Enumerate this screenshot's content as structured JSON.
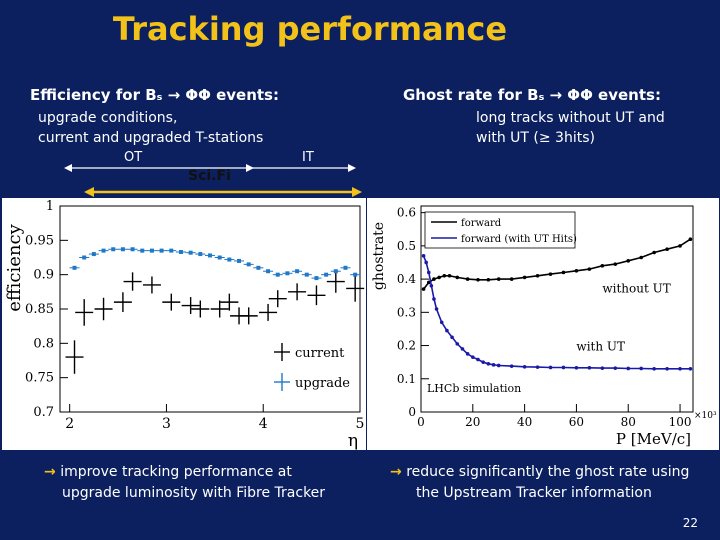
{
  "page": {
    "title": "Tracking performance",
    "page_number": "22",
    "left": {
      "header": "Efficiency for Bₛ → ΦΦ events:",
      "sub1": "upgrade conditions,",
      "sub2": "current and upgraded T-stations",
      "label_ot": "OT",
      "label_scifi": "Sci.Fi",
      "label_it": "IT",
      "bullet_line1": "improve tracking performance at",
      "bullet_line2": "upgrade luminosity with Fibre Tracker"
    },
    "right": {
      "header": "Ghost rate for Bₛ → ΦΦ events:",
      "sub1": "long tracks without UT and",
      "sub2": "with UT (≥ 3hits)",
      "bullet_line1": "reduce significantly the ghost rate using",
      "bullet_line2": "the Upstream Tracker information"
    },
    "colors": {
      "accent": "#f2c21a",
      "background": "#0c2060",
      "series_current": "#000000",
      "series_upgrade": "#1f78c8",
      "ghost_with_ut": "#1a1aa8"
    }
  },
  "chart_data": [
    {
      "type": "scatter",
      "xlabel": "η",
      "ylabel": "efficiency",
      "xlim": [
        1.9,
        5.0
      ],
      "ylim": [
        0.7,
        1.0
      ],
      "xticks": [
        "2",
        "3",
        "4",
        "5"
      ],
      "yticks": [
        "0.7",
        "0.75",
        "0.8",
        "0.85",
        "0.9",
        "0.95",
        "1"
      ],
      "legend": [
        "current",
        "upgrade"
      ],
      "series": [
        {
          "name": "current",
          "x": [
            2.05,
            2.15,
            2.35,
            2.55,
            2.65,
            2.85,
            3.05,
            3.25,
            3.35,
            3.55,
            3.65,
            3.75,
            3.85,
            4.05,
            4.15,
            4.35,
            4.55,
            4.75,
            4.95
          ],
          "y": [
            0.78,
            0.845,
            0.85,
            0.86,
            0.89,
            0.885,
            0.86,
            0.855,
            0.85,
            0.85,
            0.86,
            0.84,
            0.84,
            0.845,
            0.865,
            0.875,
            0.87,
            0.89,
            0.88
          ],
          "err": [
            0.02,
            0.015,
            0.012,
            0.01,
            0.009,
            0.008,
            0.008,
            0.008,
            0.008,
            0.008,
            0.008,
            0.008,
            0.008,
            0.008,
            0.008,
            0.008,
            0.01,
            0.012,
            0.015
          ]
        },
        {
          "name": "upgrade",
          "x": [
            2.05,
            2.15,
            2.25,
            2.35,
            2.45,
            2.55,
            2.65,
            2.75,
            2.85,
            2.95,
            3.05,
            3.15,
            3.25,
            3.35,
            3.45,
            3.55,
            3.65,
            3.75,
            3.85,
            3.95,
            4.05,
            4.15,
            4.25,
            4.35,
            4.45,
            4.55,
            4.65,
            4.75,
            4.85,
            4.95
          ],
          "y": [
            0.91,
            0.925,
            0.93,
            0.935,
            0.937,
            0.937,
            0.937,
            0.935,
            0.935,
            0.935,
            0.935,
            0.933,
            0.932,
            0.93,
            0.928,
            0.925,
            0.922,
            0.92,
            0.915,
            0.91,
            0.905,
            0.9,
            0.902,
            0.905,
            0.9,
            0.895,
            0.9,
            0.905,
            0.91,
            0.9
          ]
        }
      ]
    },
    {
      "type": "line",
      "xlabel": "P [MeV/c]",
      "ylabel": "ghostrate",
      "x_multiplier": "×10³",
      "xlim": [
        0,
        105
      ],
      "ylim": [
        0,
        0.62
      ],
      "xticks": [
        "0",
        "20",
        "40",
        "60",
        "80",
        "100"
      ],
      "yticks": [
        "0",
        "0.1",
        "0.2",
        "0.3",
        "0.4",
        "0.5",
        "0.6"
      ],
      "legend": [
        "forward",
        "forward (with UT Hits)"
      ],
      "annotations": [
        "without UT",
        "with UT",
        "LHCb simulation"
      ],
      "series": [
        {
          "name": "forward",
          "x": [
            1,
            3,
            5,
            7,
            9,
            11,
            14,
            18,
            22,
            26,
            30,
            35,
            40,
            45,
            50,
            55,
            60,
            65,
            70,
            75,
            80,
            85,
            90,
            95,
            100,
            104
          ],
          "y": [
            0.37,
            0.39,
            0.4,
            0.405,
            0.41,
            0.41,
            0.405,
            0.4,
            0.398,
            0.398,
            0.4,
            0.4,
            0.405,
            0.41,
            0.415,
            0.42,
            0.425,
            0.43,
            0.44,
            0.445,
            0.455,
            0.465,
            0.48,
            0.49,
            0.5,
            0.52
          ]
        },
        {
          "name": "forward (with UT Hits)",
          "x": [
            1,
            2,
            3,
            4,
            5,
            6,
            8,
            10,
            12,
            14,
            16,
            18,
            20,
            22,
            24,
            26,
            28,
            30,
            35,
            40,
            45,
            50,
            55,
            60,
            65,
            70,
            75,
            80,
            85,
            90,
            95,
            100,
            104
          ],
          "y": [
            0.47,
            0.45,
            0.42,
            0.38,
            0.34,
            0.31,
            0.27,
            0.245,
            0.225,
            0.205,
            0.19,
            0.175,
            0.165,
            0.158,
            0.15,
            0.145,
            0.142,
            0.14,
            0.138,
            0.136,
            0.135,
            0.134,
            0.134,
            0.133,
            0.133,
            0.132,
            0.132,
            0.131,
            0.131,
            0.13,
            0.13,
            0.13,
            0.13
          ]
        }
      ]
    }
  ]
}
